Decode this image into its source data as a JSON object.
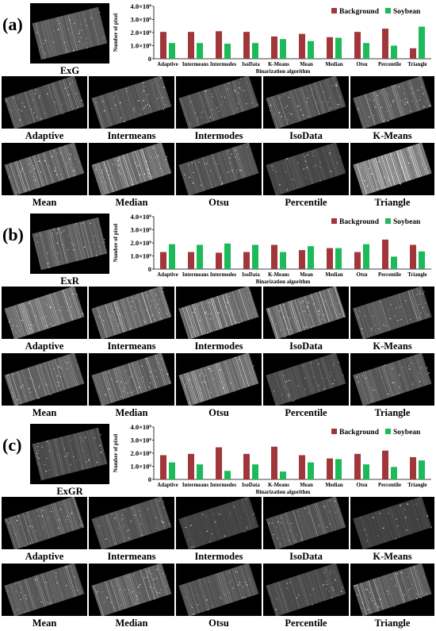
{
  "colors": {
    "background": "#A2373B",
    "soybean": "#1DBA5A"
  },
  "labels": [
    "Adaptive",
    "Intermeans",
    "Intermodes",
    "IsoData",
    "K-Means",
    "Mean",
    "Median",
    "Otsu",
    "Percentile",
    "Triangle"
  ],
  "panels": [
    {
      "id": "a",
      "label": "(a)",
      "index_name": "ExG"
    },
    {
      "id": "b",
      "label": "(b)",
      "index_name": "ExR"
    },
    {
      "id": "c",
      "label": "(c)",
      "index_name": "ExGR"
    }
  ],
  "chart_data": [
    {
      "type": "bar",
      "title": "",
      "xlabel": "Binarization algorithm",
      "ylabel": "Number of pixel",
      "ylim": [
        0,
        4000000
      ],
      "yticks": [
        "0",
        "1.0×10⁶",
        "2.0×10⁶",
        "3.0×10⁶",
        "4.0×10⁶"
      ],
      "legend_position": "top-right",
      "categories": [
        "Adaptive",
        "Intermeans",
        "Intermodes",
        "IsoData",
        "K-Means",
        "Mean",
        "Median",
        "Otsu",
        "Percentile",
        "Triangle"
      ],
      "series": [
        {
          "name": "Background",
          "values": [
            2050000,
            2050000,
            2100000,
            2050000,
            1700000,
            1900000,
            1650000,
            2050000,
            2300000,
            800000
          ]
        },
        {
          "name": "Soybean",
          "values": [
            1200000,
            1200000,
            1150000,
            1200000,
            1500000,
            1350000,
            1600000,
            1200000,
            1000000,
            2450000
          ]
        }
      ]
    },
    {
      "type": "bar",
      "title": "",
      "xlabel": "Binarization algorithm",
      "ylabel": "Number of pixel",
      "ylim": [
        0,
        4000000
      ],
      "yticks": [
        "0",
        "1.0×10⁶",
        "2.0×10⁶",
        "3.0×10⁶",
        "4.0×10⁶"
      ],
      "legend_position": "top-right",
      "categories": [
        "Adaptive",
        "Intermeans",
        "Intermodes",
        "IsoData",
        "K-Means",
        "Mean",
        "Median",
        "Otsu",
        "Percentile",
        "Triangle"
      ],
      "series": [
        {
          "name": "Background",
          "values": [
            1300000,
            1300000,
            1250000,
            1300000,
            1850000,
            1450000,
            1600000,
            1300000,
            2250000,
            1850000
          ]
        },
        {
          "name": "Soybean",
          "values": [
            1900000,
            1850000,
            1950000,
            1850000,
            1300000,
            1750000,
            1600000,
            1900000,
            950000,
            1350000
          ]
        }
      ]
    },
    {
      "type": "bar",
      "title": "",
      "xlabel": "Binarization algorithm",
      "ylabel": "Number of pixel",
      "ylim": [
        0,
        4000000
      ],
      "yticks": [
        "0",
        "1.0×10⁶",
        "2.0×10⁶",
        "3.0×10⁶",
        "4.0×10⁶"
      ],
      "legend_position": "top-right",
      "categories": [
        "Adaptive",
        "Intermeans",
        "Intermodes",
        "IsoData",
        "K-Means",
        "Mean",
        "Median",
        "Otsu",
        "Percentile",
        "Triangle"
      ],
      "series": [
        {
          "name": "Background",
          "values": [
            1850000,
            1950000,
            2450000,
            1950000,
            2500000,
            1850000,
            1600000,
            1950000,
            2200000,
            1700000
          ]
        },
        {
          "name": "Soybean",
          "values": [
            1300000,
            1150000,
            650000,
            1150000,
            600000,
            1300000,
            1550000,
            1150000,
            950000,
            1450000
          ]
        }
      ]
    }
  ]
}
